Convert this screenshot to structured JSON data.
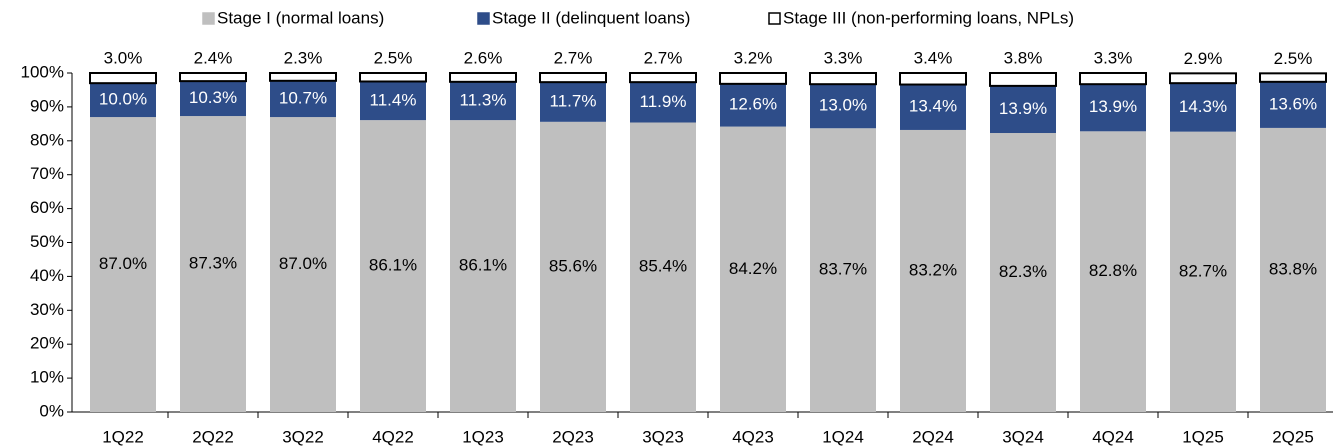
{
  "chart_data": {
    "type": "stacked_bar",
    "categories": [
      "1Q22",
      "2Q22",
      "3Q22",
      "4Q22",
      "1Q23",
      "2Q23",
      "3Q23",
      "4Q23",
      "1Q24",
      "2Q24",
      "3Q24",
      "4Q24",
      "1Q25",
      "2Q25"
    ],
    "series": [
      {
        "name": "Stage I (normal loans)",
        "color": "#bfbfbf",
        "values": [
          87.0,
          87.3,
          87.0,
          86.1,
          86.1,
          85.6,
          85.4,
          84.2,
          83.7,
          83.2,
          82.3,
          82.8,
          82.7,
          83.8
        ],
        "value_labels": [
          "87.0%",
          "87.3%",
          "87.0%",
          "86.1%",
          "86.1%",
          "85.6%",
          "85.4%",
          "84.2%",
          "83.7%",
          "83.2%",
          "82.3%",
          "82.8%",
          "82.7%",
          "83.8%"
        ]
      },
      {
        "name": "Stage II (delinquent loans)",
        "color": "#2e4d89",
        "values": [
          10.0,
          10.3,
          10.7,
          11.4,
          11.3,
          11.7,
          11.9,
          12.6,
          13.0,
          13.4,
          13.9,
          13.9,
          14.3,
          13.6
        ],
        "value_labels": [
          "10.0%",
          "10.3%",
          "10.7%",
          "11.4%",
          "11.3%",
          "11.7%",
          "11.9%",
          "12.6%",
          "13.0%",
          "13.4%",
          "13.9%",
          "13.9%",
          "14.3%",
          "13.6%"
        ]
      },
      {
        "name": "Stage III (non-performing loans, NPLs)",
        "color": "#ffffff",
        "values": [
          3.0,
          2.4,
          2.3,
          2.5,
          2.6,
          2.7,
          2.7,
          3.2,
          3.3,
          3.4,
          3.8,
          3.3,
          2.9,
          2.5
        ],
        "value_labels": [
          "3.0%",
          "2.4%",
          "2.3%",
          "2.5%",
          "2.6%",
          "2.7%",
          "2.7%",
          "3.2%",
          "3.3%",
          "3.4%",
          "3.8%",
          "3.3%",
          "2.9%",
          "2.5%"
        ]
      }
    ],
    "ylim": [
      0,
      100
    ],
    "yticks": [
      {
        "value": 0,
        "label": "0%"
      },
      {
        "value": 10,
        "label": "10%"
      },
      {
        "value": 20,
        "label": "20%"
      },
      {
        "value": 30,
        "label": "30%"
      },
      {
        "value": 40,
        "label": "40%"
      },
      {
        "value": 50,
        "label": "50%"
      },
      {
        "value": 60,
        "label": "60%"
      },
      {
        "value": 70,
        "label": "70%"
      },
      {
        "value": 80,
        "label": "80%"
      },
      {
        "value": 90,
        "label": "90%"
      },
      {
        "value": 100,
        "label": "100%"
      }
    ],
    "grid": false,
    "legend": "top"
  }
}
